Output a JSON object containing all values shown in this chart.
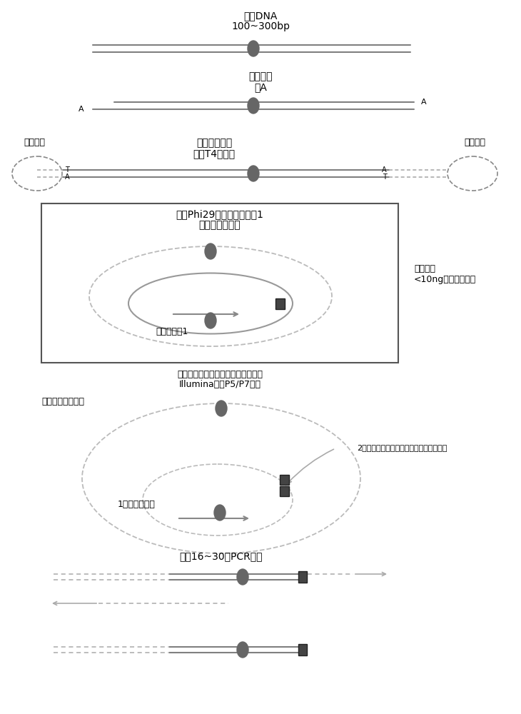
{
  "bg_color": "#ffffff",
  "line_color": "#808080",
  "node_color": "#666666",
  "dark_node_color": "#444444",
  "title1": "游离DNA",
  "title1b": "100~300bp",
  "title2a": "末端修复",
  "title2b": "加A",
  "title3a": "加入环状接头",
  "title3b": "以及T4连接酶",
  "label_left_adapter": "环状接头",
  "label_right_adapter": "环状接头",
  "title4a": "加入Phi29酶和特异性引物1",
  "title4b": "进行环状预扩增",
  "label_optional1": "可选步骤",
  "label_optional2": "<10ng时进行预扩增",
  "label_primer1": "特异性引物1",
  "title5a": "同时加入特异性引物、通用接头引物",
  "title5b": "Illumina测序P5/P7引物",
  "label_hot_denature": "高温解链成单链环",
  "label_anneal": "2、通用接头引物与特异性引物延伸链结合",
  "label_specific": "1、特异性引物",
  "title6": "进行16~30轮PCR循环",
  "font_size": 9,
  "font_size_small": 8
}
